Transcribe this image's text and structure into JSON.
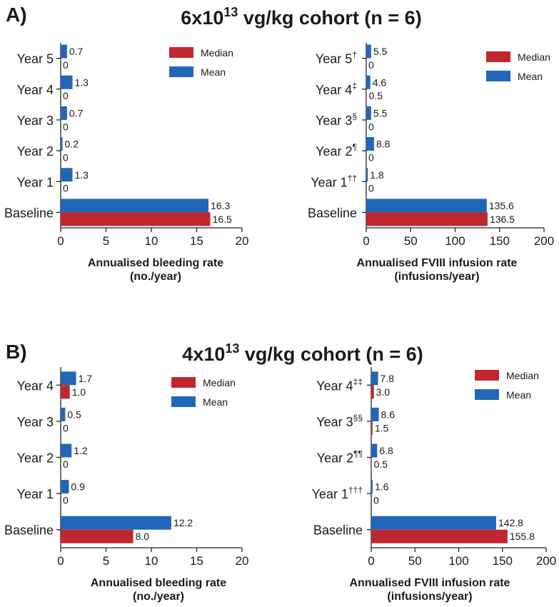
{
  "panels": [
    {
      "label": "A)",
      "title_main": "6x10",
      "title_sup": "13",
      "title_rest": " vg/kg cohort (n = 6)"
    },
    {
      "label": "B)",
      "title_main": "4x10",
      "title_sup": "13",
      "title_rest": " vg/kg cohort (n = 6)"
    }
  ],
  "colors": {
    "median": "#c0272d",
    "mean": "#2266b8"
  },
  "chart_data": [
    {
      "type": "bar",
      "orientation": "horizontal",
      "panel": "A)",
      "categories": [
        "Year 5",
        "Year 4",
        "Year 3",
        "Year 2",
        "Year 1",
        "Baseline"
      ],
      "category_marks": [
        "",
        "",
        "",
        "",
        "",
        ""
      ],
      "series": [
        {
          "name": "Mean",
          "values": [
            0.7,
            1.3,
            0.7,
            0.2,
            1.3,
            16.3
          ],
          "labels": [
            "0.7",
            "1.3",
            "0.7",
            "0.2",
            "1.3",
            "16.3"
          ]
        },
        {
          "name": "Median",
          "values": [
            0,
            0,
            0,
            0,
            0,
            16.5
          ],
          "labels": [
            "0",
            "0",
            "0",
            "0",
            "0",
            "16.5"
          ]
        }
      ],
      "xlim": [
        0,
        20
      ],
      "xticks": [
        "0",
        "5",
        "10",
        "15",
        "20"
      ],
      "xlabel": [
        "Annualised bleeding rate",
        "(no./year)"
      ],
      "legend": [
        "Median",
        "Mean"
      ],
      "legend_position": "top-right"
    },
    {
      "type": "bar",
      "orientation": "horizontal",
      "panel": "A)",
      "categories": [
        "Year 5",
        "Year 4",
        "Year 3",
        "Year 2",
        "Year 1",
        "Baseline"
      ],
      "category_marks": [
        "†",
        "‡",
        "§",
        "¶",
        "††",
        ""
      ],
      "series": [
        {
          "name": "Mean",
          "values": [
            5.5,
            4.6,
            5.5,
            8.8,
            1.8,
            135.6
          ],
          "labels": [
            "5.5",
            "4.6",
            "5.5",
            "8.8",
            "1.8",
            "135.6"
          ]
        },
        {
          "name": "Median",
          "values": [
            0,
            0.5,
            0,
            0,
            0,
            136.5
          ],
          "labels": [
            "0",
            "0.5",
            "0",
            "0",
            "0",
            "136.5"
          ]
        }
      ],
      "xlim": [
        0,
        200
      ],
      "xticks": [
        "0",
        "50",
        "100",
        "150",
        "200"
      ],
      "xlabel": [
        "Annualised FVIII infusion rate",
        "(infusions/year)"
      ],
      "legend": [
        "Median",
        "Mean"
      ],
      "legend_position": "top-right"
    },
    {
      "type": "bar",
      "orientation": "horizontal",
      "panel": "B)",
      "categories": [
        "Year 4",
        "Year 3",
        "Year 2",
        "Year 1",
        "Baseline"
      ],
      "category_marks": [
        "",
        "",
        "",
        "",
        ""
      ],
      "series": [
        {
          "name": "Mean",
          "values": [
            1.7,
            0.5,
            1.2,
            0.9,
            12.2
          ],
          "labels": [
            "1.7",
            "0.5",
            "1.2",
            "0.9",
            "12.2"
          ]
        },
        {
          "name": "Median",
          "values": [
            1.0,
            0,
            0,
            0,
            8.0
          ],
          "labels": [
            "1.0",
            "0",
            "0",
            "0",
            "8.0"
          ]
        }
      ],
      "xlim": [
        0,
        20
      ],
      "xticks": [
        "0",
        "5",
        "10",
        "15",
        "20"
      ],
      "xlabel": [
        "Annualised bleeding rate",
        "(no./year)"
      ],
      "legend": [
        "Median",
        "Mean"
      ],
      "legend_position": "top-right"
    },
    {
      "type": "bar",
      "orientation": "horizontal",
      "panel": "B)",
      "categories": [
        "Year 4",
        "Year 3",
        "Year 2",
        "Year 1",
        "Baseline"
      ],
      "category_marks": [
        "‡‡",
        "§§",
        "¶¶",
        "†††",
        ""
      ],
      "series": [
        {
          "name": "Mean",
          "values": [
            7.8,
            8.6,
            6.8,
            1.6,
            142.8
          ],
          "labels": [
            "7.8",
            "8.6",
            "6.8",
            "1.6",
            "142.8"
          ]
        },
        {
          "name": "Median",
          "values": [
            3.0,
            1.5,
            0.5,
            0,
            155.8
          ],
          "labels": [
            "3.0",
            "1.5",
            "0.5",
            "0",
            "155.8"
          ]
        }
      ],
      "xlim": [
        0,
        200
      ],
      "xticks": [
        "0",
        "50",
        "100",
        "150",
        "200"
      ],
      "xlabel": [
        "Annualised FVIII infusion rate",
        "(infusions/year)"
      ],
      "legend": [
        "Median",
        "Mean"
      ],
      "legend_position": "top-right"
    }
  ]
}
